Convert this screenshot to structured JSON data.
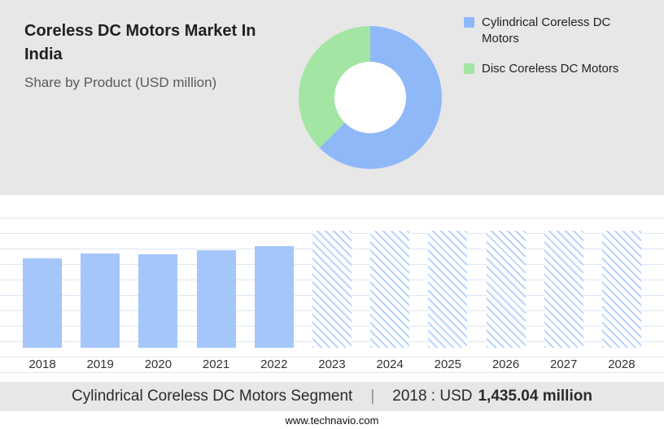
{
  "header": {
    "title": "Coreless DC Motors Market In India",
    "subtitle": "Share by Product (USD million)"
  },
  "legend": [
    {
      "label": "Cylindrical Coreless DC Motors",
      "color": "#8fb8f9"
    },
    {
      "label": "Disc Coreless DC Motors",
      "color": "#a3e6a3"
    }
  ],
  "chart_data": [
    {
      "type": "pie",
      "donut": true,
      "title": "Share by Product (USD million)",
      "labels": [
        "Cylindrical Coreless DC Motors",
        "Disc Coreless DC Motors"
      ],
      "values_pct": [
        62.5,
        37.5
      ],
      "colors": [
        "#8fb8f9",
        "#a3e6a3"
      ],
      "legend_position": "right"
    },
    {
      "type": "bar",
      "categories": [
        "2018",
        "2019",
        "2020",
        "2021",
        "2022",
        "2023",
        "2024",
        "2025",
        "2026",
        "2027",
        "2028"
      ],
      "series": [
        {
          "name": "Market size (USD million)",
          "values": [
            1435.04,
            1480,
            1465,
            1510,
            1565,
            null,
            null,
            null,
            null,
            null,
            null
          ]
        }
      ],
      "bar_styles": [
        "solid",
        "solid",
        "solid",
        "solid",
        "solid",
        "hatched",
        "hatched",
        "hatched",
        "hatched",
        "hatched",
        "hatched"
      ],
      "height_pct": [
        76,
        80,
        79,
        83,
        86,
        99,
        99,
        99,
        99,
        99,
        99
      ],
      "grid": "horizontal",
      "bar_color": "#a4c6fa",
      "hatch_color": "#b9d4fc",
      "xlabel": "",
      "ylabel": ""
    }
  ],
  "footer": {
    "segment_label": "Cylindrical Coreless DC Motors Segment",
    "separator": "|",
    "year_label": "2018 : USD",
    "value": "1,435.04 million",
    "website": "www.technavio.com"
  }
}
